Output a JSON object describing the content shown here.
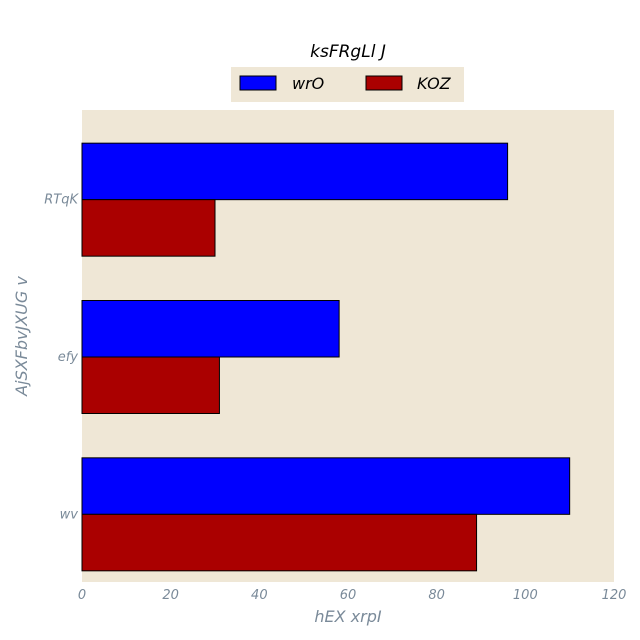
{
  "chart_data": {
    "type": "bar",
    "orientation": "horizontal",
    "title": "ksFRgLl J",
    "xlabel": "hEX xrpI",
    "ylabel": "AjSXFbvJXUG v",
    "categories": [
      "RTqK",
      "efy",
      "wv"
    ],
    "series": [
      {
        "name": "wrO",
        "values": [
          96,
          58,
          110
        ],
        "color": "#0000ff"
      },
      {
        "name": "KOZ",
        "values": [
          30,
          31,
          89
        ],
        "color": "#aa0000"
      }
    ],
    "xlim": [
      0,
      120
    ],
    "xticks": [
      "0",
      "20",
      "40",
      "60",
      "80",
      "100",
      "120"
    ],
    "grid": false,
    "legend_position": "top-center",
    "colors": {
      "plot_background": "#efe7d6",
      "legend_background": "#efe7d6",
      "tick_color": "#7a8a99"
    }
  }
}
